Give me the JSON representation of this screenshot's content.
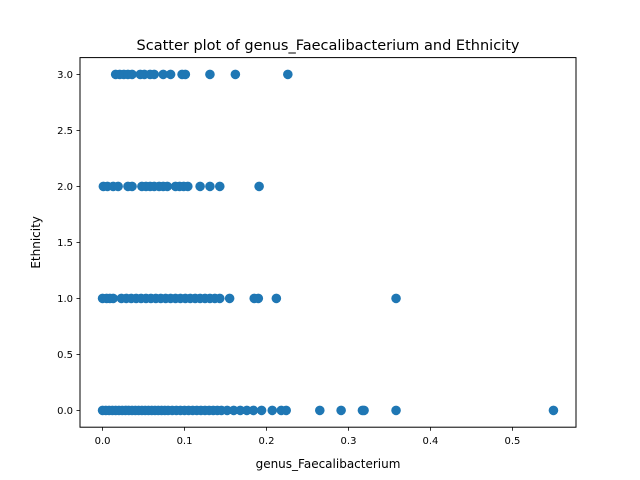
{
  "chart_data": {
    "type": "scatter",
    "title": "Scatter plot of genus_Faecalibacterium and Ethnicity",
    "xlabel": "genus_Faecalibacterium",
    "ylabel": "Ethnicity",
    "xlim": [
      -0.0275,
      0.5775
    ],
    "ylim": [
      -0.15,
      3.15
    ],
    "xticks": [
      0.0,
      0.1,
      0.2,
      0.3,
      0.4,
      0.5
    ],
    "xtick_labels": [
      "0.0",
      "0.1",
      "0.2",
      "0.3",
      "0.4",
      "0.5"
    ],
    "yticks": [
      0.0,
      0.5,
      1.0,
      1.5,
      2.0,
      2.5,
      3.0
    ],
    "ytick_labels": [
      "0.0",
      "0.5",
      "1.0",
      "1.5",
      "2.0",
      "2.5",
      "3.0"
    ],
    "grid": false,
    "marker_color": "#1f77b4",
    "series": [
      {
        "points": [
          {
            "x": 0.016,
            "y": 3
          },
          {
            "x": 0.021,
            "y": 3
          },
          {
            "x": 0.026,
            "y": 3
          },
          {
            "x": 0.031,
            "y": 3
          },
          {
            "x": 0.036,
            "y": 3
          },
          {
            "x": 0.046,
            "y": 3
          },
          {
            "x": 0.051,
            "y": 3
          },
          {
            "x": 0.058,
            "y": 3
          },
          {
            "x": 0.063,
            "y": 3
          },
          {
            "x": 0.074,
            "y": 3
          },
          {
            "x": 0.083,
            "y": 3
          },
          {
            "x": 0.097,
            "y": 3
          },
          {
            "x": 0.101,
            "y": 3
          },
          {
            "x": 0.131,
            "y": 3
          },
          {
            "x": 0.162,
            "y": 3
          },
          {
            "x": 0.226,
            "y": 3
          },
          {
            "x": 0.001,
            "y": 2
          },
          {
            "x": 0.006,
            "y": 2
          },
          {
            "x": 0.013,
            "y": 2
          },
          {
            "x": 0.019,
            "y": 2
          },
          {
            "x": 0.031,
            "y": 2
          },
          {
            "x": 0.036,
            "y": 2
          },
          {
            "x": 0.048,
            "y": 2
          },
          {
            "x": 0.053,
            "y": 2
          },
          {
            "x": 0.058,
            "y": 2
          },
          {
            "x": 0.063,
            "y": 2
          },
          {
            "x": 0.069,
            "y": 2
          },
          {
            "x": 0.074,
            "y": 2
          },
          {
            "x": 0.079,
            "y": 2
          },
          {
            "x": 0.089,
            "y": 2
          },
          {
            "x": 0.094,
            "y": 2
          },
          {
            "x": 0.099,
            "y": 2
          },
          {
            "x": 0.104,
            "y": 2
          },
          {
            "x": 0.119,
            "y": 2
          },
          {
            "x": 0.131,
            "y": 2
          },
          {
            "x": 0.143,
            "y": 2
          },
          {
            "x": 0.191,
            "y": 2
          },
          {
            "x": 0.0,
            "y": 1
          },
          {
            "x": 0.005,
            "y": 1
          },
          {
            "x": 0.009,
            "y": 1
          },
          {
            "x": 0.013,
            "y": 1
          },
          {
            "x": 0.023,
            "y": 1
          },
          {
            "x": 0.029,
            "y": 1
          },
          {
            "x": 0.035,
            "y": 1
          },
          {
            "x": 0.041,
            "y": 1
          },
          {
            "x": 0.047,
            "y": 1
          },
          {
            "x": 0.053,
            "y": 1
          },
          {
            "x": 0.059,
            "y": 1
          },
          {
            "x": 0.065,
            "y": 1
          },
          {
            "x": 0.071,
            "y": 1
          },
          {
            "x": 0.077,
            "y": 1
          },
          {
            "x": 0.083,
            "y": 1
          },
          {
            "x": 0.089,
            "y": 1
          },
          {
            "x": 0.095,
            "y": 1
          },
          {
            "x": 0.101,
            "y": 1
          },
          {
            "x": 0.107,
            "y": 1
          },
          {
            "x": 0.113,
            "y": 1
          },
          {
            "x": 0.119,
            "y": 1
          },
          {
            "x": 0.125,
            "y": 1
          },
          {
            "x": 0.131,
            "y": 1
          },
          {
            "x": 0.137,
            "y": 1
          },
          {
            "x": 0.143,
            "y": 1
          },
          {
            "x": 0.155,
            "y": 1
          },
          {
            "x": 0.185,
            "y": 1
          },
          {
            "x": 0.19,
            "y": 1
          },
          {
            "x": 0.212,
            "y": 1
          },
          {
            "x": 0.358,
            "y": 1
          },
          {
            "x": 0.0,
            "y": 0
          },
          {
            "x": 0.004,
            "y": 0
          },
          {
            "x": 0.008,
            "y": 0
          },
          {
            "x": 0.012,
            "y": 0
          },
          {
            "x": 0.016,
            "y": 0
          },
          {
            "x": 0.02,
            "y": 0
          },
          {
            "x": 0.024,
            "y": 0
          },
          {
            "x": 0.028,
            "y": 0
          },
          {
            "x": 0.032,
            "y": 0
          },
          {
            "x": 0.036,
            "y": 0
          },
          {
            "x": 0.04,
            "y": 0
          },
          {
            "x": 0.044,
            "y": 0
          },
          {
            "x": 0.048,
            "y": 0
          },
          {
            "x": 0.052,
            "y": 0
          },
          {
            "x": 0.056,
            "y": 0
          },
          {
            "x": 0.06,
            "y": 0
          },
          {
            "x": 0.064,
            "y": 0
          },
          {
            "x": 0.068,
            "y": 0
          },
          {
            "x": 0.072,
            "y": 0
          },
          {
            "x": 0.076,
            "y": 0
          },
          {
            "x": 0.08,
            "y": 0
          },
          {
            "x": 0.085,
            "y": 0
          },
          {
            "x": 0.09,
            "y": 0
          },
          {
            "x": 0.095,
            "y": 0
          },
          {
            "x": 0.1,
            "y": 0
          },
          {
            "x": 0.105,
            "y": 0
          },
          {
            "x": 0.11,
            "y": 0
          },
          {
            "x": 0.115,
            "y": 0
          },
          {
            "x": 0.12,
            "y": 0
          },
          {
            "x": 0.125,
            "y": 0
          },
          {
            "x": 0.13,
            "y": 0
          },
          {
            "x": 0.135,
            "y": 0
          },
          {
            "x": 0.14,
            "y": 0
          },
          {
            "x": 0.145,
            "y": 0
          },
          {
            "x": 0.152,
            "y": 0
          },
          {
            "x": 0.16,
            "y": 0
          },
          {
            "x": 0.168,
            "y": 0
          },
          {
            "x": 0.176,
            "y": 0
          },
          {
            "x": 0.184,
            "y": 0
          },
          {
            "x": 0.194,
            "y": 0
          },
          {
            "x": 0.207,
            "y": 0
          },
          {
            "x": 0.218,
            "y": 0
          },
          {
            "x": 0.224,
            "y": 0
          },
          {
            "x": 0.265,
            "y": 0
          },
          {
            "x": 0.291,
            "y": 0
          },
          {
            "x": 0.317,
            "y": 0
          },
          {
            "x": 0.319,
            "y": 0
          },
          {
            "x": 0.358,
            "y": 0
          },
          {
            "x": 0.55,
            "y": 0
          }
        ]
      }
    ]
  }
}
